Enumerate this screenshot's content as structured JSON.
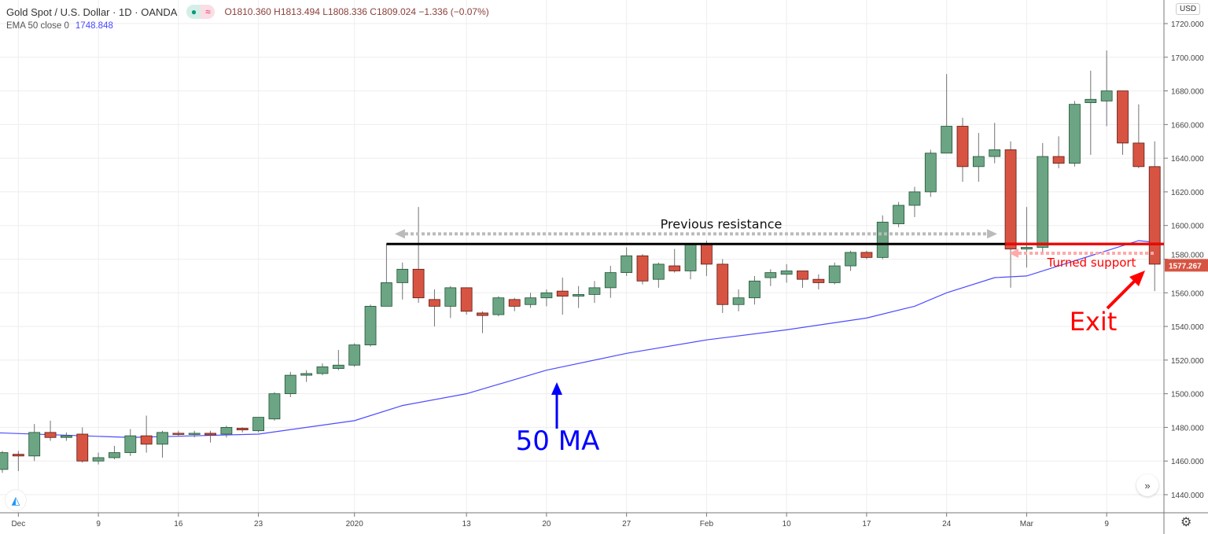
{
  "header": {
    "symbol": "Gold Spot / U.S. Dollar · 1D · OANDA",
    "ohlc": "O1810.360  H1813.494  L1808.336  C1809.024  −1.336 (−0.07%)",
    "indicator_label": "EMA 50 close 0",
    "indicator_value": "1748.848",
    "currency": "USD",
    "icons": [
      "market-status-dot-icon",
      "wave-icon",
      "tradingview-logo-icon",
      "scroll-forward-icon",
      "settings-gear-icon"
    ]
  },
  "colors": {
    "up": "#6ba583",
    "up_border": "#225437",
    "down": "#d75442",
    "down_border": "#5b1a13",
    "ema": "#4c4cff",
    "annotation_red": "#ff0000",
    "annotation_blue": "#0000ff"
  },
  "chart_data": {
    "type": "candlestick",
    "ylim": [
      1440,
      1720
    ],
    "y_ticks": [
      "1440.000",
      "1460.000",
      "1480.000",
      "1500.000",
      "1520.000",
      "1540.000",
      "1560.000",
      "1580.000",
      "1600.000",
      "1620.000",
      "1640.000",
      "1660.000",
      "1680.000",
      "1700.000",
      "1720.000"
    ],
    "x_ticks": [
      {
        "label": "Dec",
        "index": 1
      },
      {
        "label": "9",
        "index": 6
      },
      {
        "label": "16",
        "index": 11
      },
      {
        "label": "23",
        "index": 16
      },
      {
        "label": "2020",
        "index": 22
      },
      {
        "label": "13",
        "index": 29
      },
      {
        "label": "20",
        "index": 34
      },
      {
        "label": "27",
        "index": 39
      },
      {
        "label": "Feb",
        "index": 44
      },
      {
        "label": "10",
        "index": 49
      },
      {
        "label": "17",
        "index": 54
      },
      {
        "label": "24",
        "index": 59
      },
      {
        "label": "Mar",
        "index": 64
      },
      {
        "label": "9",
        "index": 69
      }
    ],
    "grid": true,
    "last_price": "1577.267",
    "ohlc": [
      [
        1455,
        1466,
        1453,
        1465
      ],
      [
        1464,
        1466,
        1454,
        1463
      ],
      [
        1463,
        1482,
        1460,
        1477
      ],
      [
        1477,
        1484,
        1472,
        1474
      ],
      [
        1474,
        1477,
        1472,
        1475
      ],
      [
        1476,
        1480,
        1459,
        1460
      ],
      [
        1460,
        1465,
        1458,
        1462
      ],
      [
        1462,
        1469,
        1461,
        1465
      ],
      [
        1465,
        1479,
        1463,
        1475
      ],
      [
        1475,
        1487,
        1465,
        1470
      ],
      [
        1470,
        1478,
        1462,
        1477
      ],
      [
        1476.5,
        1478,
        1475,
        1476
      ],
      [
        1476,
        1478,
        1474,
        1476.5
      ],
      [
        1476.5,
        1478,
        1471,
        1475.5
      ],
      [
        1476,
        1481,
        1474,
        1480
      ],
      [
        1479.5,
        1480,
        1477,
        1478.5
      ],
      [
        1478,
        1486,
        1477,
        1486
      ],
      [
        1485,
        1501,
        1484,
        1500
      ],
      [
        1500,
        1513,
        1498,
        1511
      ],
      [
        1511,
        1514,
        1507,
        1512
      ],
      [
        1512,
        1518,
        1511,
        1516
      ],
      [
        1515,
        1526,
        1514,
        1517
      ],
      [
        1517,
        1530,
        1516,
        1529
      ],
      [
        1529,
        1553,
        1528,
        1552
      ],
      [
        1552,
        1589,
        1552,
        1566
      ],
      [
        1566,
        1578,
        1556,
        1574
      ],
      [
        1574,
        1611,
        1554,
        1557
      ],
      [
        1556,
        1562,
        1540,
        1552
      ],
      [
        1552,
        1564,
        1545,
        1563
      ],
      [
        1563,
        1563,
        1547,
        1549
      ],
      [
        1548,
        1549,
        1536,
        1546.5
      ],
      [
        1547,
        1558,
        1546,
        1557
      ],
      [
        1556,
        1557,
        1549,
        1552
      ],
      [
        1553,
        1560,
        1551,
        1557
      ],
      [
        1557,
        1562,
        1552,
        1560
      ],
      [
        1561,
        1569,
        1547,
        1558
      ],
      [
        1558,
        1564,
        1551,
        1559
      ],
      [
        1559,
        1567,
        1554,
        1563
      ],
      [
        1563,
        1576,
        1557,
        1572
      ],
      [
        1572,
        1587,
        1570,
        1582
      ],
      [
        1582,
        1583,
        1565,
        1567
      ],
      [
        1568,
        1578,
        1563,
        1577
      ],
      [
        1576,
        1586,
        1572,
        1573
      ],
      [
        1573,
        1589,
        1568,
        1589
      ],
      [
        1589,
        1591,
        1570,
        1577
      ],
      [
        1577,
        1580,
        1548,
        1553
      ],
      [
        1553,
        1562,
        1549,
        1557
      ],
      [
        1557,
        1570,
        1553,
        1567
      ],
      [
        1569,
        1574,
        1564,
        1572
      ],
      [
        1571,
        1577,
        1566,
        1573
      ],
      [
        1573,
        1573,
        1563,
        1568
      ],
      [
        1568,
        1571,
        1562,
        1566
      ],
      [
        1566,
        1578,
        1565,
        1576
      ],
      [
        1576,
        1585,
        1573,
        1584
      ],
      [
        1584,
        1585,
        1580,
        1581
      ],
      [
        1581,
        1606,
        1580,
        1602
      ],
      [
        1601,
        1614,
        1599,
        1612
      ],
      [
        1612,
        1623,
        1605,
        1620
      ],
      [
        1620,
        1645,
        1617,
        1643
      ],
      [
        1643,
        1690,
        1643,
        1659
      ],
      [
        1659,
        1664,
        1626,
        1635
      ],
      [
        1635,
        1655,
        1626,
        1641
      ],
      [
        1641,
        1661,
        1637,
        1645
      ],
      [
        1645,
        1650,
        1563,
        1586
      ],
      [
        1586,
        1611,
        1575,
        1587
      ],
      [
        1587,
        1649,
        1584,
        1641
      ],
      [
        1641,
        1653,
        1634,
        1637
      ],
      [
        1637,
        1674,
        1635,
        1672
      ],
      [
        1673,
        1692,
        1642,
        1675
      ],
      [
        1674,
        1704,
        1659,
        1680
      ],
      [
        1680,
        1680,
        1642,
        1649
      ],
      [
        1649,
        1672,
        1634,
        1635
      ],
      [
        1635,
        1650,
        1561,
        1577
      ]
    ],
    "ema50": [
      [
        -1,
        1477
      ],
      [
        8,
        1474
      ],
      [
        16,
        1476
      ],
      [
        22,
        1484
      ],
      [
        25,
        1493
      ],
      [
        29,
        1500
      ],
      [
        34,
        1514
      ],
      [
        39,
        1524
      ],
      [
        44,
        1532
      ],
      [
        49,
        1538
      ],
      [
        54,
        1545
      ],
      [
        57,
        1552
      ],
      [
        59,
        1560
      ],
      [
        62,
        1569
      ],
      [
        64,
        1570
      ],
      [
        66,
        1576
      ],
      [
        69,
        1585
      ],
      [
        71,
        1591
      ],
      [
        72,
        1590
      ]
    ],
    "annotations": {
      "resistance_level": 1589,
      "resistance_start_index": 24,
      "resistance_label": "Previous resistance",
      "support_level": 1589,
      "support_start_index": 63,
      "support_label": "Turned support",
      "exit_label": "Exit",
      "ma_label": "50 MA"
    }
  }
}
